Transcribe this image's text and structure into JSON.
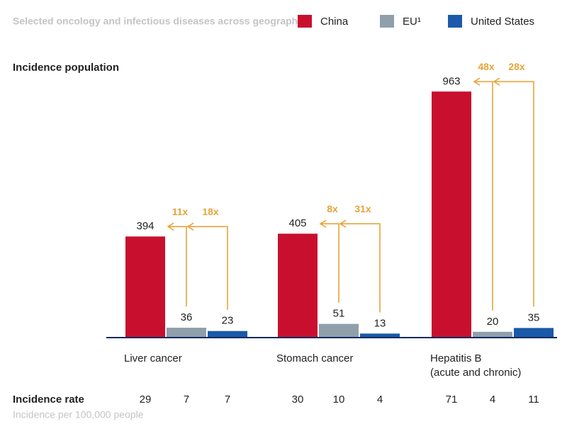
{
  "chart_data": {
    "type": "bar",
    "title": "Selected oncology and infectious diseases across geographies",
    "y_label": "Incidence population",
    "categories": [
      "Liver cancer",
      "Stomach cancer",
      "Hepatitis B\n(acute and chronic)"
    ],
    "series": [
      {
        "name": "China",
        "color": "#c8102e",
        "values": [
          394,
          405,
          963
        ]
      },
      {
        "name": "EU¹",
        "color": "#8fa0ab",
        "values": [
          36,
          51,
          20
        ]
      },
      {
        "name": "United States",
        "color": "#1a5aa8",
        "values": [
          23,
          13,
          35
        ]
      }
    ],
    "multipliers": [
      [
        "11x",
        "18x"
      ],
      [
        "8x",
        "31x"
      ],
      [
        "48x",
        "28x"
      ]
    ],
    "multiplier_color": "#e8a43a",
    "incidence_rate": {
      "label": "Incidence rate",
      "sublabel": "Incidence per 100,000 people",
      "values": [
        [
          29,
          7,
          7
        ],
        [
          30,
          10,
          4
        ],
        [
          71,
          4,
          11
        ]
      ]
    }
  }
}
